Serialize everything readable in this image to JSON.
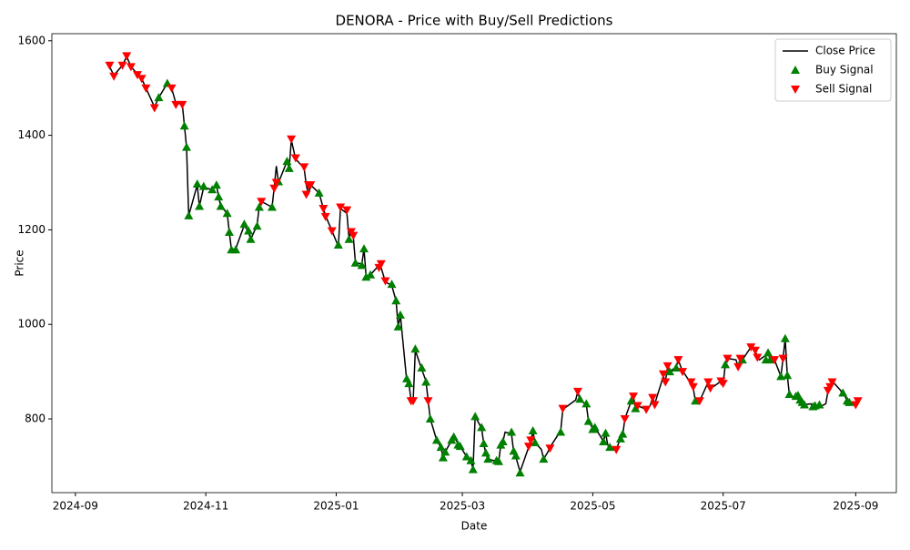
{
  "chart_data": {
    "type": "line",
    "title": "DENORA - Price with Buy/Sell Predictions",
    "x_label": "Date",
    "y_label": "Price",
    "xlim": [
      "2024-08-21",
      "2025-09-20"
    ],
    "ylim": [
      644,
      1615
    ],
    "xticks": [
      {
        "value": "2024-09-01",
        "label": "2024-09"
      },
      {
        "value": "2024-11-01",
        "label": "2024-11"
      },
      {
        "value": "2025-01-01",
        "label": "2025-01"
      },
      {
        "value": "2025-03-01",
        "label": "2025-03"
      },
      {
        "value": "2025-05-01",
        "label": "2025-05"
      },
      {
        "value": "2025-07-01",
        "label": "2025-07"
      },
      {
        "value": "2025-09-01",
        "label": "2025-09"
      }
    ],
    "yticks": [
      800,
      1000,
      1200,
      1400,
      1600
    ],
    "legend": "upper right",
    "x": [
      "2024-09-17",
      "2024-09-19",
      "2024-09-23",
      "2024-09-25",
      "2024-09-27",
      "2024-09-30",
      "2024-10-02",
      "2024-10-04",
      "2024-10-08",
      "2024-10-10",
      "2024-10-14",
      "2024-10-16",
      "2024-10-18",
      "2024-10-21",
      "2024-10-22",
      "2024-10-23",
      "2024-10-24",
      "2024-10-28",
      "2024-10-29",
      "2024-10-31",
      "2024-11-04",
      "2024-11-06",
      "2024-11-07",
      "2024-11-08",
      "2024-11-11",
      "2024-11-12",
      "2024-11-13",
      "2024-11-15",
      "2024-11-19",
      "2024-11-21",
      "2024-11-22",
      "2024-11-25",
      "2024-11-26",
      "2024-11-27",
      "2024-12-02",
      "2024-12-03",
      "2024-12-04",
      "2024-12-05",
      "2024-12-09",
      "2024-12-10",
      "2024-12-11",
      "2024-12-13",
      "2024-12-17",
      "2024-12-18",
      "2024-12-19",
      "2024-12-20",
      "2024-12-24",
      "2024-12-26",
      "2024-12-27",
      "2024-12-30",
      "2025-01-02",
      "2025-01-03",
      "2025-01-06",
      "2025-01-07",
      "2025-01-08",
      "2025-01-09",
      "2025-01-10",
      "2025-01-13",
      "2025-01-14",
      "2025-01-15",
      "2025-01-17",
      "2025-01-21",
      "2025-01-22",
      "2025-01-24",
      "2025-01-27",
      "2025-01-29",
      "2025-01-30",
      "2025-01-31",
      "2025-02-03",
      "2025-02-04",
      "2025-02-05",
      "2025-02-06",
      "2025-02-07",
      "2025-02-10",
      "2025-02-12",
      "2025-02-13",
      "2025-02-14",
      "2025-02-17",
      "2025-02-19",
      "2025-02-20",
      "2025-02-21",
      "2025-02-24",
      "2025-02-25",
      "2025-02-27",
      "2025-02-28",
      "2025-03-03",
      "2025-03-05",
      "2025-03-06",
      "2025-03-07",
      "2025-03-10",
      "2025-03-11",
      "2025-03-12",
      "2025-03-13",
      "2025-03-17",
      "2025-03-18",
      "2025-03-19",
      "2025-03-20",
      "2025-03-21",
      "2025-03-24",
      "2025-03-25",
      "2025-03-26",
      "2025-03-28",
      "2025-04-01",
      "2025-04-02",
      "2025-04-03",
      "2025-04-04",
      "2025-04-07",
      "2025-04-08",
      "2025-04-10",
      "2025-04-11",
      "2025-04-16",
      "2025-04-17",
      "2025-04-23",
      "2025-04-24",
      "2025-04-25",
      "2025-04-28",
      "2025-04-29",
      "2025-05-01",
      "2025-05-02",
      "2025-05-05",
      "2025-05-06",
      "2025-05-07",
      "2025-05-08",
      "2025-05-09",
      "2025-05-12",
      "2025-05-14",
      "2025-05-15",
      "2025-05-16",
      "2025-05-19",
      "2025-05-20",
      "2025-05-21",
      "2025-05-22",
      "2025-05-26",
      "2025-05-27",
      "2025-05-28",
      "2025-05-29",
      "2025-05-30",
      "2025-06-03",
      "2025-06-04",
      "2025-06-05",
      "2025-06-06",
      "2025-06-09",
      "2025-06-10",
      "2025-06-12",
      "2025-06-13",
      "2025-06-16",
      "2025-06-17",
      "2025-06-18",
      "2025-06-19",
      "2025-06-20",
      "2025-06-24",
      "2025-06-25",
      "2025-06-27",
      "2025-06-30",
      "2025-07-01",
      "2025-07-02",
      "2025-07-03",
      "2025-07-07",
      "2025-07-08",
      "2025-07-09",
      "2025-07-10",
      "2025-07-14",
      "2025-07-15",
      "2025-07-16",
      "2025-07-17",
      "2025-07-18",
      "2025-07-21",
      "2025-07-22",
      "2025-07-23",
      "2025-07-25",
      "2025-07-28",
      "2025-07-29",
      "2025-07-30",
      "2025-07-31",
      "2025-08-01",
      "2025-08-04",
      "2025-08-05",
      "2025-08-06",
      "2025-08-07",
      "2025-08-08",
      "2025-08-11",
      "2025-08-12",
      "2025-08-13",
      "2025-08-15",
      "2025-08-18",
      "2025-08-19",
      "2025-08-20",
      "2025-08-21",
      "2025-08-22",
      "2025-08-25",
      "2025-08-26",
      "2025-08-27",
      "2025-08-28",
      "2025-08-29",
      "2025-09-01",
      "2025-09-02"
    ],
    "series": [
      {
        "name": "Close Price",
        "color": "#000000",
        "values": [
          1545,
          1527,
          1548,
          1567,
          1545,
          1530,
          1520,
          1500,
          1460,
          1480,
          1510,
          1500,
          1468,
          1466,
          1420,
          1375,
          1230,
          1295,
          1250,
          1290,
          1285,
          1295,
          1270,
          1250,
          1235,
          1195,
          1158,
          1160,
          1210,
          1195,
          1180,
          1210,
          1250,
          1260,
          1248,
          1290,
          1335,
          1300,
          1345,
          1330,
          1390,
          1350,
          1330,
          1295,
          1275,
          1295,
          1278,
          1245,
          1230,
          1198,
          1165,
          1245,
          1235,
          1182,
          1198,
          1185,
          1130,
          1128,
          1160,
          1100,
          1105,
          1125,
          1120,
          1090,
          1082,
          1050,
          995,
          1020,
          880,
          875,
          840,
          838,
          945,
          905,
          880,
          838,
          800,
          755,
          740,
          718,
          730,
          755,
          762,
          748,
          742,
          720,
          710,
          695,
          805,
          780,
          748,
          725,
          715,
          710,
          710,
          745,
          752,
          772,
          768,
          730,
          720,
          688,
          740,
          755,
          772,
          750,
          735,
          715,
          730,
          740,
          775,
          820,
          840,
          858,
          840,
          830,
          795,
          780,
          782,
          760,
          752,
          770,
          745,
          738,
          735,
          760,
          765,
          800,
          838,
          848,
          822,
          828,
          820,
          822,
          830,
          845,
          832,
          890,
          880,
          910,
          900,
          910,
          925,
          900,
          895,
          875,
          865,
          838,
          840,
          838,
          878,
          865,
          870,
          880,
          875,
          915,
          928,
          925,
          910,
          930,
          925,
          952,
          950,
          945,
          930,
          925,
          935,
          940,
          925,
          925,
          890,
          928,
          970,
          892,
          850,
          845,
          848,
          840,
          835,
          830,
          832,
          825,
          828,
          825,
          832,
          858,
          865,
          878,
          875,
          860,
          850,
          848,
          838,
          835,
          830,
          835
        ]
      },
      {
        "name": "Buy Signal",
        "color": "#008000",
        "x": [
          "2024-10-10",
          "2024-10-14",
          "2024-10-22",
          "2024-10-23",
          "2024-10-24",
          "2024-10-28",
          "2024-10-29",
          "2024-10-31",
          "2024-11-04",
          "2024-11-06",
          "2024-11-07",
          "2024-11-08",
          "2024-11-11",
          "2024-11-12",
          "2024-11-13",
          "2024-11-15",
          "2024-11-19",
          "2024-11-21",
          "2024-11-22",
          "2024-11-25",
          "2024-11-26",
          "2024-12-02",
          "2024-12-05",
          "2024-12-09",
          "2024-12-10",
          "2024-12-24",
          "2025-01-02",
          "2025-01-07",
          "2025-01-10",
          "2025-01-13",
          "2025-01-14",
          "2025-01-15",
          "2025-01-17",
          "2025-01-27",
          "2025-01-29",
          "2025-01-30",
          "2025-01-31",
          "2025-02-03",
          "2025-02-04",
          "2025-02-07",
          "2025-02-10",
          "2025-02-12",
          "2025-02-14",
          "2025-02-17",
          "2025-02-19",
          "2025-02-20",
          "2025-02-21",
          "2025-02-24",
          "2025-02-25",
          "2025-02-27",
          "2025-02-28",
          "2025-03-03",
          "2025-03-05",
          "2025-03-06",
          "2025-03-07",
          "2025-03-10",
          "2025-03-11",
          "2025-03-12",
          "2025-03-13",
          "2025-03-17",
          "2025-03-18",
          "2025-03-19",
          "2025-03-20",
          "2025-03-24",
          "2025-03-25",
          "2025-03-26",
          "2025-03-28",
          "2025-04-03",
          "2025-04-04",
          "2025-04-08",
          "2025-04-16",
          "2025-04-25",
          "2025-04-28",
          "2025-04-29",
          "2025-05-01",
          "2025-05-02",
          "2025-05-06",
          "2025-05-07",
          "2025-05-09",
          "2025-05-14",
          "2025-05-15",
          "2025-05-19",
          "2025-05-21",
          "2025-06-06",
          "2025-06-09",
          "2025-06-18",
          "2025-07-02",
          "2025-07-10",
          "2025-07-21",
          "2025-07-22",
          "2025-07-23",
          "2025-07-28",
          "2025-07-30",
          "2025-07-31",
          "2025-08-01",
          "2025-08-04",
          "2025-08-05",
          "2025-08-06",
          "2025-08-07",
          "2025-08-08",
          "2025-08-12",
          "2025-08-13",
          "2025-08-15",
          "2025-08-26",
          "2025-08-28",
          "2025-08-29"
        ],
        "values": [
          1480,
          1510,
          1420,
          1375,
          1230,
          1297,
          1250,
          1292,
          1285,
          1295,
          1270,
          1250,
          1235,
          1195,
          1158,
          1158,
          1212,
          1198,
          1180,
          1208,
          1248,
          1248,
          1302,
          1345,
          1330,
          1278,
          1168,
          1180,
          1130,
          1125,
          1160,
          1100,
          1105,
          1085,
          1050,
          995,
          1020,
          885,
          875,
          948,
          908,
          878,
          800,
          755,
          740,
          718,
          730,
          755,
          762,
          745,
          742,
          720,
          712,
          693,
          805,
          782,
          748,
          728,
          715,
          712,
          710,
          745,
          752,
          772,
          732,
          722,
          686,
          775,
          750,
          715,
          772,
          842,
          832,
          795,
          778,
          782,
          752,
          770,
          740,
          758,
          768,
          838,
          822,
          900,
          908,
          838,
          915,
          925,
          925,
          940,
          925,
          890,
          970,
          892,
          852,
          848,
          850,
          840,
          835,
          830,
          826,
          828,
          830,
          855,
          838,
          835
        ]
      },
      {
        "name": "Sell Signal",
        "color": "#ff0000",
        "x": [
          "2024-09-17",
          "2024-09-19",
          "2024-09-23",
          "2024-09-25",
          "2024-09-27",
          "2024-09-30",
          "2024-10-02",
          "2024-10-04",
          "2024-10-08",
          "2024-10-16",
          "2024-10-18",
          "2024-10-21",
          "2024-11-27",
          "2024-12-03",
          "2024-12-04",
          "2024-12-11",
          "2024-12-13",
          "2024-12-17",
          "2024-12-18",
          "2024-12-19",
          "2024-12-20",
          "2024-12-26",
          "2024-12-27",
          "2024-12-30",
          "2025-01-03",
          "2025-01-06",
          "2025-01-08",
          "2025-01-09",
          "2025-01-21",
          "2025-01-22",
          "2025-01-24",
          "2025-02-05",
          "2025-02-06",
          "2025-02-13",
          "2025-04-01",
          "2025-04-02",
          "2025-04-11",
          "2025-04-17",
          "2025-04-24",
          "2025-05-12",
          "2025-05-16",
          "2025-05-20",
          "2025-05-22",
          "2025-05-26",
          "2025-05-29",
          "2025-05-30",
          "2025-06-03",
          "2025-06-04",
          "2025-06-05",
          "2025-06-10",
          "2025-06-12",
          "2025-06-16",
          "2025-06-17",
          "2025-06-20",
          "2025-06-24",
          "2025-06-25",
          "2025-06-30",
          "2025-07-01",
          "2025-07-03",
          "2025-07-08",
          "2025-07-09",
          "2025-07-14",
          "2025-07-16",
          "2025-07-17",
          "2025-07-25",
          "2025-07-29",
          "2025-08-19",
          "2025-08-20",
          "2025-08-21",
          "2025-09-01",
          "2025-09-02"
        ],
        "values": [
          1548,
          1525,
          1548,
          1568,
          1545,
          1528,
          1520,
          1500,
          1458,
          1500,
          1465,
          1465,
          1260,
          1288,
          1300,
          1392,
          1352,
          1333,
          1275,
          1295,
          1295,
          1245,
          1228,
          1198,
          1248,
          1242,
          1196,
          1188,
          1120,
          1128,
          1092,
          838,
          838,
          838,
          742,
          755,
          738,
          822,
          858,
          735,
          800,
          848,
          828,
          820,
          845,
          830,
          895,
          878,
          912,
          925,
          900,
          878,
          868,
          838,
          878,
          865,
          880,
          875,
          928,
          910,
          928,
          952,
          945,
          930,
          925,
          928,
          860,
          868,
          878,
          830,
          838
        ]
      }
    ]
  }
}
